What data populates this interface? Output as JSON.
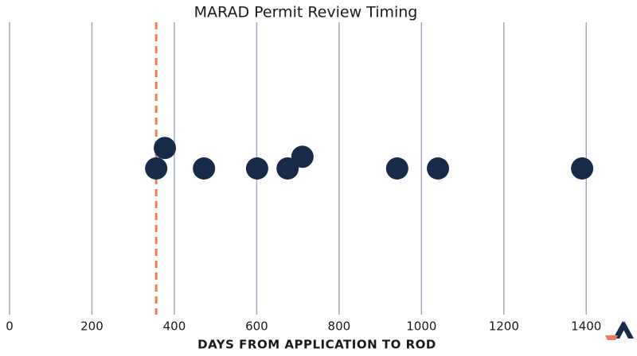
{
  "chart_data": {
    "type": "scatter",
    "title": "MARAD Permit Review Timing",
    "x_label": "DAYS FROM APPLICATION TO ROD",
    "x": [
      356,
      377,
      472,
      601,
      675,
      711,
      941,
      1040,
      1390
    ],
    "y": [
      0,
      0.14,
      0,
      0,
      0,
      0.08,
      0,
      0,
      0
    ],
    "color": "#172a4a",
    "xlim": [
      0,
      1500
    ],
    "xticks": [
      0,
      200,
      400,
      600,
      800,
      1000,
      1200,
      1400
    ],
    "ylim": [
      -1,
      1
    ],
    "grid": true,
    "reference_line": {
      "value": 356,
      "color": "#f07a5a"
    }
  }
}
